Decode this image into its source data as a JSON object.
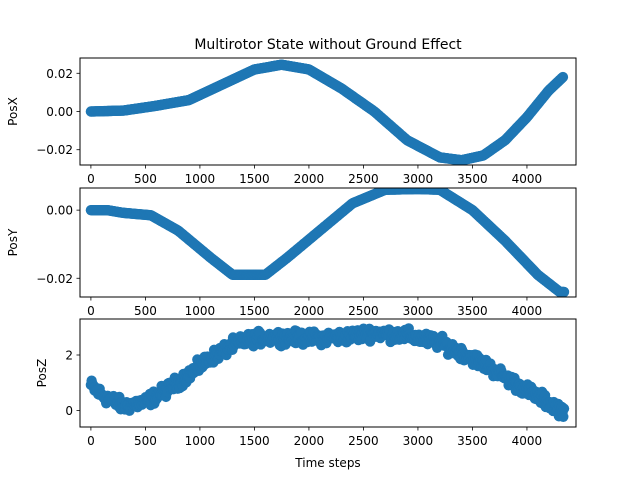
{
  "chart_data": [
    {
      "type": "scatter",
      "title": "Multirotor State without Ground Effect",
      "xlabel": "",
      "ylabel": "PosX",
      "xlim": [
        -100,
        4450
      ],
      "ylim": [
        -0.028,
        0.028
      ],
      "xticks": [
        0,
        500,
        1000,
        1500,
        2000,
        2500,
        3000,
        3500,
        4000
      ],
      "yticks": [
        -0.02,
        0.0,
        0.02
      ],
      "ytick_labels": [
        "−0.02",
        "0.00",
        "0.02"
      ],
      "grid": false,
      "marker_color": "#1f77b4",
      "keypoints": {
        "x": [
          0,
          300,
          600,
          900,
          1200,
          1500,
          1750,
          2000,
          2300,
          2600,
          2900,
          3200,
          3400,
          3600,
          3800,
          4000,
          4200,
          4330
        ],
        "y": [
          0.0,
          0.0005,
          0.003,
          0.006,
          0.014,
          0.022,
          0.0245,
          0.022,
          0.012,
          0.0,
          -0.015,
          -0.024,
          -0.0255,
          -0.023,
          -0.015,
          -0.003,
          0.011,
          0.018
        ]
      }
    },
    {
      "type": "scatter",
      "title": "",
      "xlabel": "",
      "ylabel": "PosY",
      "xlim": [
        -100,
        4450
      ],
      "ylim": [
        -0.0255,
        0.0065
      ],
      "xticks": [
        0,
        500,
        1000,
        1500,
        2000,
        2500,
        3000,
        3500,
        4000
      ],
      "yticks": [
        -0.02,
        0.0
      ],
      "ytick_labels": [
        "−0.02",
        "0.00"
      ],
      "grid": false,
      "marker_color": "#1f77b4",
      "keypoints": {
        "x": [
          0,
          150,
          300,
          550,
          800,
          1100,
          1300,
          1600,
          1800,
          2100,
          2400,
          2700,
          3000,
          3200,
          3500,
          3800,
          4100,
          4300,
          4340
        ],
        "y": [
          0.0,
          0.0,
          -0.0008,
          -0.0015,
          -0.006,
          -0.014,
          -0.019,
          -0.019,
          -0.014,
          -0.006,
          0.002,
          0.006,
          0.0062,
          0.006,
          0.0,
          -0.009,
          -0.019,
          -0.024,
          -0.024
        ]
      }
    },
    {
      "type": "scatter",
      "title": "",
      "xlabel": "Time steps",
      "ylabel": "PosZ",
      "xlim": [
        -100,
        4450
      ],
      "ylim": [
        -0.6,
        3.3
      ],
      "xticks": [
        0,
        500,
        1000,
        1500,
        2000,
        2500,
        3000,
        3500,
        4000
      ],
      "yticks": [
        0,
        2
      ],
      "ytick_labels": [
        "0",
        "2"
      ],
      "grid": false,
      "marker_color": "#1f77b4",
      "keypoints": {
        "x": [
          0,
          100,
          300,
          500,
          700,
          900,
          1100,
          1300,
          1500,
          1700,
          2000,
          2300,
          2600,
          2900,
          3200,
          3500,
          3700,
          3900,
          4100,
          4300,
          4340
        ],
        "y": [
          0.9,
          0.55,
          0.15,
          0.3,
          0.75,
          1.3,
          1.9,
          2.35,
          2.6,
          2.65,
          2.6,
          2.65,
          2.8,
          2.7,
          2.45,
          1.9,
          1.45,
          0.95,
          0.5,
          0.05,
          0.0
        ]
      },
      "noise": 0.23
    }
  ]
}
